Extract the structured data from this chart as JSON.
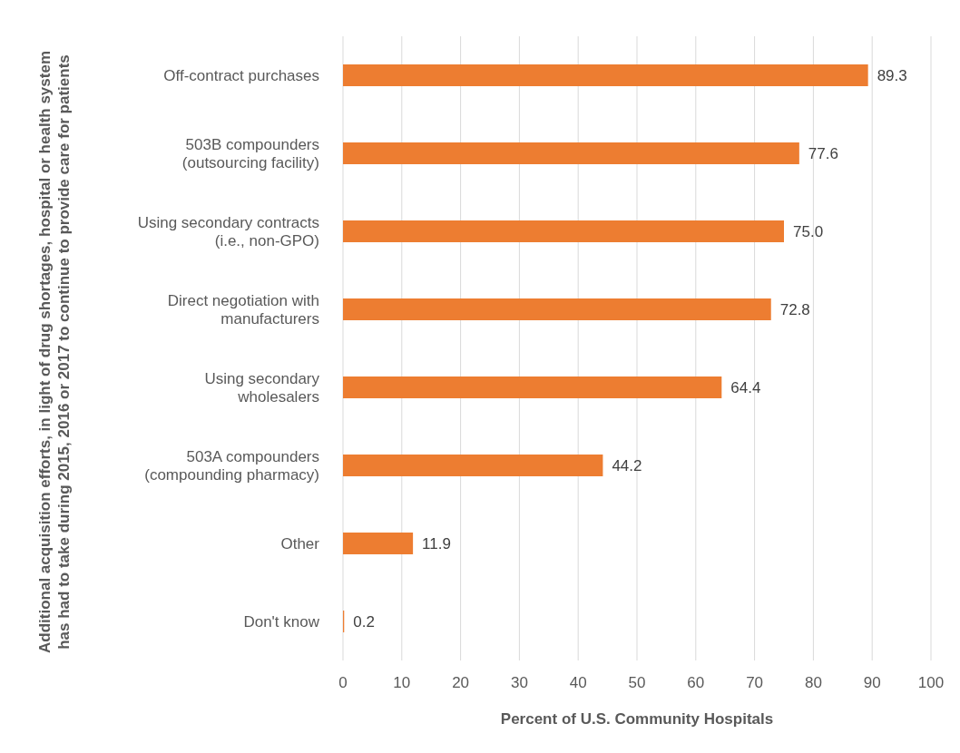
{
  "chart_data": {
    "type": "bar",
    "orientation": "horizontal",
    "categories": [
      "Off-contract purchases",
      "503B compounders (outsourcing facility)",
      "Using secondary contracts (i.e., non-GPO)",
      "Direct negotiation with manufacturers",
      "Using secondary wholesalers",
      "503A compounders (compounding pharmacy)",
      "Other",
      "Don't know"
    ],
    "values": [
      89.3,
      77.6,
      75.0,
      72.8,
      64.4,
      44.2,
      11.9,
      0.2
    ],
    "value_labels": [
      "89.3",
      "77.6",
      "75.0",
      "72.8",
      "64.4",
      "44.2",
      "11.9",
      "0.2"
    ],
    "color": "#ed7d31",
    "xlabel": "Percent of U.S. Community Hospitals",
    "ylabel": "Additional acquisition efforts, in light of drug shortages, hospital or health system has had to take during 2015, 2016 or 2017 to continue to provide care for patients",
    "xlim": [
      0,
      100
    ],
    "xticks": [
      0,
      10,
      20,
      30,
      40,
      50,
      60,
      70,
      80,
      90,
      100
    ],
    "grid": "x",
    "legend": false
  }
}
